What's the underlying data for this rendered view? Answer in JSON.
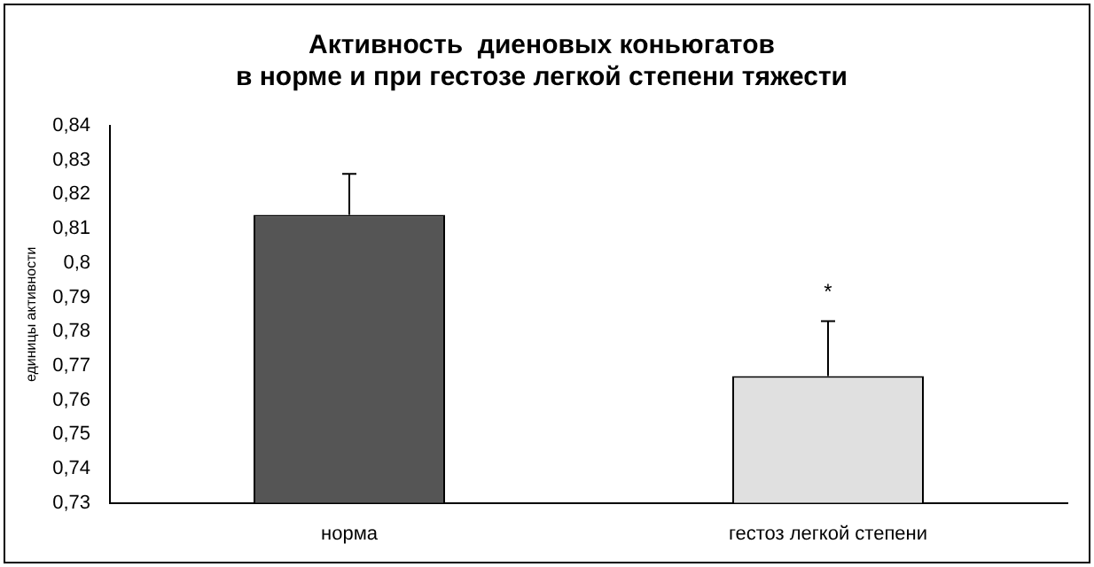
{
  "chart_data": {
    "type": "bar",
    "title": "Активность  диеновых коньюгатов\nв норме и при гестозе легкой степени тяжести",
    "ylabel": "единицы активности",
    "categories": [
      "норма",
      "гестоз легкой степени"
    ],
    "values": [
      0.814,
      0.767
    ],
    "colors": [
      "#555555",
      "#e0e0e0"
    ],
    "errors": [
      [
        0.814,
        0.826
      ],
      [
        0.767,
        0.783
      ]
    ],
    "ylim": [
      0.73,
      0.84
    ],
    "yticks": [
      {
        "value": 0.73,
        "label": "0,73"
      },
      {
        "value": 0.74,
        "label": "0,74"
      },
      {
        "value": 0.75,
        "label": "0,75"
      },
      {
        "value": 0.76,
        "label": "0,76"
      },
      {
        "value": 0.77,
        "label": "0,77"
      },
      {
        "value": 0.78,
        "label": "0,78"
      },
      {
        "value": 0.79,
        "label": "0,79"
      },
      {
        "value": 0.8,
        "label": "0,8"
      },
      {
        "value": 0.81,
        "label": "0,81"
      },
      {
        "value": 0.82,
        "label": "0,82"
      },
      {
        "value": 0.83,
        "label": "0,83"
      },
      {
        "value": 0.84,
        "label": "0,84"
      }
    ],
    "annotations": [
      "*"
    ],
    "grid": false,
    "legend": false
  }
}
